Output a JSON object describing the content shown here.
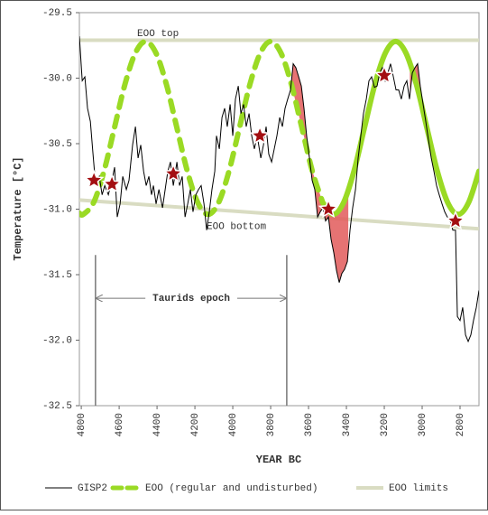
{
  "chart_data": {
    "type": "line",
    "xlabel": "YEAR BC",
    "ylabel": "Temperature [°C]",
    "xlim": [
      4810,
      2700
    ],
    "ylim": [
      -29.5,
      -32.5
    ],
    "xticks": [
      4800,
      4600,
      4400,
      4200,
      4000,
      3800,
      3600,
      3400,
      3200,
      3000,
      2800
    ],
    "yticks": [
      -29.5,
      {
        "value": -30,
        "label": "-30.0"
      },
      -30.5,
      {
        "value": -31,
        "label": "-31.0"
      },
      -31.5,
      {
        "value": -32,
        "label": "-32.0"
      },
      -32.5
    ],
    "series": [
      {
        "name": "GISP2",
        "color": "#000000",
        "x": [
          4810,
          4795,
          4781,
          4767,
          4752,
          4738,
          4724,
          4705,
          4690,
          4676,
          4657,
          4638,
          4624,
          4610,
          4595,
          4581,
          4562,
          4548,
          4529,
          4514,
          4500,
          4486,
          4471,
          4457,
          4443,
          4429,
          4419,
          4405,
          4390,
          4371,
          4357,
          4343,
          4329,
          4314,
          4295,
          4281,
          4267,
          4252,
          4238,
          4224,
          4210,
          4195,
          4181,
          4167,
          4152,
          4138,
          4124,
          4110,
          4095,
          4086,
          4071,
          4057,
          4043,
          4029,
          4014,
          4000,
          3986,
          3971,
          3957,
          3943,
          3929,
          3914,
          3900,
          3886,
          3871,
          3852,
          3838,
          3824,
          3810,
          3795,
          3781,
          3767,
          3752,
          3738,
          3724,
          3710,
          3695,
          3681,
          3667,
          3652,
          3638,
          3624,
          3610,
          3595,
          3581,
          3567,
          3552,
          3538,
          3524,
          3510,
          3495,
          3481,
          3467,
          3452,
          3438,
          3424,
          3410,
          3395,
          3381,
          3367,
          3352,
          3338,
          3324,
          3310,
          3295,
          3281,
          3267,
          3252,
          3238,
          3224,
          3210,
          3195,
          3181,
          3167,
          3152,
          3138,
          3124,
          3110,
          3095,
          3081,
          3067,
          3052,
          3038,
          3024,
          3010,
          2995,
          2981,
          2967,
          2952,
          2938,
          2924,
          2910,
          2895,
          2881,
          2867,
          2852,
          2838,
          2824,
          2814,
          2800,
          2786,
          2771,
          2757,
          2743,
          2729,
          2714,
          2700
        ],
        "values": [
          -29.68,
          -30.02,
          -29.99,
          -30.23,
          -30.33,
          -30.58,
          -30.82,
          -30.75,
          -30.89,
          -30.82,
          -30.89,
          -30.78,
          -30.68,
          -31.06,
          -30.96,
          -30.75,
          -30.85,
          -30.78,
          -30.51,
          -30.37,
          -30.61,
          -30.51,
          -30.71,
          -30.82,
          -30.75,
          -30.89,
          -30.82,
          -30.96,
          -30.85,
          -30.99,
          -30.85,
          -30.71,
          -30.64,
          -30.82,
          -30.64,
          -30.82,
          -30.75,
          -31.06,
          -30.96,
          -30.85,
          -31.02,
          -30.89,
          -30.85,
          -30.82,
          -30.96,
          -31.16,
          -31.02,
          -30.85,
          -30.71,
          -30.44,
          -30.54,
          -30.3,
          -30.23,
          -30.37,
          -30.2,
          -30.44,
          -30.16,
          -30.06,
          -30.27,
          -30.2,
          -30.37,
          -30.27,
          -30.44,
          -30.54,
          -30.44,
          -30.61,
          -30.51,
          -30.37,
          -30.58,
          -30.64,
          -30.54,
          -30.44,
          -30.3,
          -30.37,
          -30.23,
          -30.16,
          -30.09,
          -29.89,
          -29.92,
          -29.99,
          -30.06,
          -30.23,
          -30.44,
          -30.61,
          -30.78,
          -30.85,
          -31.06,
          -31.02,
          -30.99,
          -31.09,
          -31.06,
          -31.23,
          -31.33,
          -31.47,
          -31.56,
          -31.49,
          -31.46,
          -31.4,
          -31.16,
          -30.99,
          -30.85,
          -30.61,
          -30.44,
          -30.27,
          -30.16,
          -30.02,
          -29.99,
          -30.07,
          -30.06,
          -29.96,
          -29.92,
          -30.02,
          -29.96,
          -29.89,
          -29.99,
          -30.09,
          -30.09,
          -30.16,
          -30.06,
          -30.02,
          -30.16,
          -29.96,
          -29.92,
          -29.89,
          -30.06,
          -30.2,
          -30.33,
          -30.47,
          -30.61,
          -30.71,
          -30.82,
          -30.89,
          -30.96,
          -31.02,
          -31.06,
          -31.09,
          -31.16,
          -31.16,
          -31.82,
          -31.85,
          -31.75,
          -31.96,
          -32.01,
          -31.96,
          -31.85,
          -31.75,
          -31.62
        ]
      },
      {
        "name": "EOO (regular and undisturbed)",
        "color": "#9ada24",
        "solid_from_x": 3525,
        "x": [
          4810,
          4790,
          4735,
          4680,
          4625,
          4570,
          4515,
          4460,
          4405,
          4350,
          4295,
          4240,
          4185,
          4130,
          4075,
          4020,
          3965,
          3910,
          3855,
          3800,
          3745,
          3690,
          3635,
          3580,
          3525,
          3470,
          3415,
          3360,
          3305,
          3250,
          3195,
          3140,
          3085,
          3030,
          2975,
          2920,
          2865,
          2810,
          2755,
          2700
        ],
        "values": [
          -31.03,
          -31.04,
          -30.95,
          -30.71,
          -30.38,
          -30.05,
          -29.81,
          -29.72,
          -29.81,
          -30.05,
          -30.38,
          -30.71,
          -30.95,
          -31.04,
          -30.95,
          -30.71,
          -30.38,
          -30.05,
          -29.81,
          -29.72,
          -29.81,
          -30.05,
          -30.38,
          -30.71,
          -30.95,
          -31.04,
          -30.95,
          -30.71,
          -30.38,
          -30.05,
          -29.81,
          -29.72,
          -29.81,
          -30.05,
          -30.38,
          -30.71,
          -30.95,
          -31.04,
          -30.95,
          -30.71
        ]
      },
      {
        "name": "EOO limits",
        "color": "#d9dcc2",
        "x": [
          4810,
          2700
        ],
        "values": [
          -29.71,
          -29.71
        ]
      },
      {
        "color": "#d9dcc2",
        "x": [
          4810,
          2700
        ],
        "values": [
          -30.93,
          -31.15
        ]
      }
    ],
    "highlights": [
      [
        3690,
        3390
      ],
      [
        3065,
        2985
      ]
    ],
    "highlight_color": "#e25a5a",
    "markers": {
      "color": "#a30f12",
      "x": [
        4733,
        4638,
        4314,
        3857,
        3495,
        3200,
        2824
      ],
      "y": [
        -30.78,
        -30.81,
        -30.73,
        -30.44,
        -31.0,
        -29.98,
        -31.09
      ]
    },
    "annotations": [
      {
        "text": "EOO top",
        "x": 4395,
        "y": -29.66
      },
      {
        "text": "EOO bottom",
        "x": 3981,
        "y": -31.13
      },
      {
        "text": "Taurids epoch",
        "x": 4219,
        "y": -31.68
      }
    ],
    "epoch_x": [
      4725,
      3715
    ],
    "epoch_y": -31.35
  }
}
